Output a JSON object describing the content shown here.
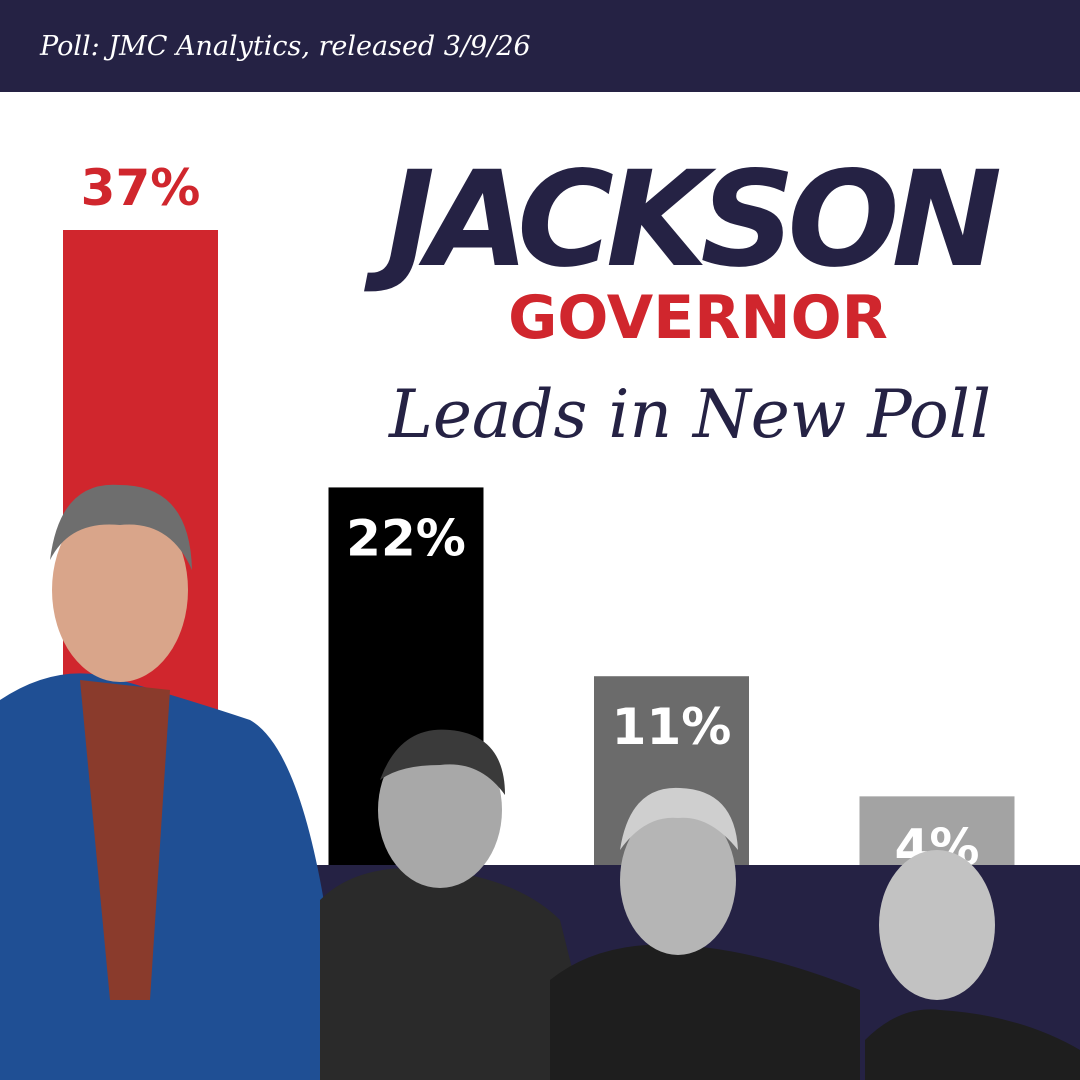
{
  "chart_data": {
    "type": "bar",
    "source": "Poll: JMC Analytics, released 3/9/26",
    "title": "JACKSON",
    "subtitle": "GOVERNOR",
    "headline": "Leads in New Poll",
    "categories": [
      null,
      null,
      null,
      null
    ],
    "values": [
      37,
      22,
      11,
      4
    ],
    "value_labels": [
      "37%",
      "22%",
      "11%",
      "4%"
    ],
    "colors": [
      "#d0262d",
      "#000000",
      "#6b6b6b",
      "#a3a3a3"
    ]
  }
}
